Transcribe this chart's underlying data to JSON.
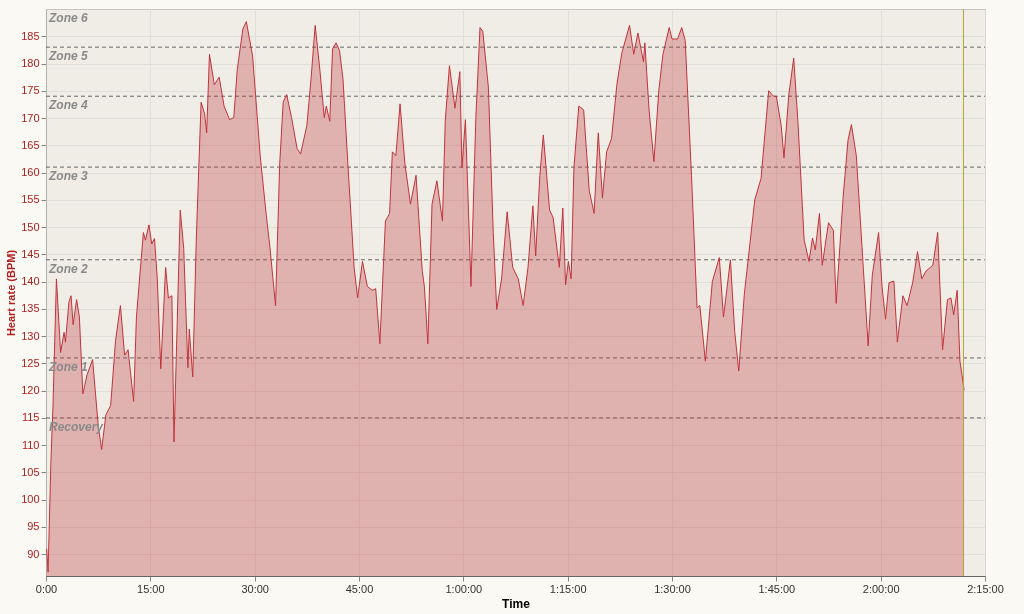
{
  "chart_data": {
    "type": "area",
    "xlabel": "Time",
    "ylabel": "Heart rate (BPM)",
    "xlim": [
      0,
      135
    ],
    "ylim": [
      86,
      190
    ],
    "xticks": [
      {
        "value": 0,
        "label": "0:00"
      },
      {
        "value": 15,
        "label": "15:00"
      },
      {
        "value": 30,
        "label": "30:00"
      },
      {
        "value": 45,
        "label": "45:00"
      },
      {
        "value": 60,
        "label": "1:00:00"
      },
      {
        "value": 75,
        "label": "1:15:00"
      },
      {
        "value": 90,
        "label": "1:30:00"
      },
      {
        "value": 105,
        "label": "1:45:00"
      },
      {
        "value": 120,
        "label": "2:00:00"
      },
      {
        "value": 135,
        "label": "2:15:00"
      }
    ],
    "yticks": [
      90,
      95,
      100,
      105,
      110,
      115,
      120,
      125,
      130,
      135,
      140,
      145,
      150,
      155,
      160,
      165,
      170,
      175,
      180,
      185
    ],
    "grid": true,
    "x": [
      0.1,
      0.3,
      0.7,
      1.0,
      1.5,
      2.1,
      2.6,
      2.8,
      3.3,
      3.6,
      3.9,
      4.4,
      4.8,
      5.3,
      5.9,
      6.7,
      7.5,
      8.0,
      8.6,
      9.3,
      10.0,
      10.7,
      11.3,
      11.8,
      12.6,
      13.0,
      14.0,
      14.3,
      14.8,
      15.2,
      15.6,
      16.0,
      16.5,
      17.2,
      17.6,
      18.1,
      18.4,
      18.6,
      19.3,
      19.8,
      20.4,
      20.6,
      21.1,
      21.6,
      22.3,
      22.8,
      23.1,
      23.5,
      24.2,
      24.9,
      25.6,
      26.4,
      27.0,
      27.5,
      28.3,
      28.8,
      29.7,
      30.8,
      31.7,
      32.2,
      33.0,
      33.6,
      34.1,
      34.6,
      35.3,
      36.1,
      36.6,
      37.5,
      38.1,
      38.7,
      39.4,
      40.0,
      40.3,
      40.8,
      41.2,
      41.7,
      42.2,
      42.7,
      43.4,
      44.3,
      44.8,
      45.5,
      46.2,
      46.9,
      47.4,
      48.0,
      48.8,
      49.4,
      49.8,
      50.3,
      50.9,
      51.6,
      52.4,
      53.2,
      54.1,
      54.4,
      54.9,
      55.5,
      56.2,
      57.0,
      57.4,
      58.0,
      58.8,
      59.5,
      59.8,
      60.3,
      61.1,
      61.8,
      62.4,
      62.8,
      63.6,
      64.3,
      64.8,
      65.5,
      66.3,
      67.1,
      67.9,
      68.6,
      69.3,
      70.0,
      70.4,
      71.0,
      71.5,
      72.4,
      72.9,
      73.8,
      74.3,
      74.7,
      75.1,
      75.5,
      75.9,
      76.6,
      77.3,
      78.1,
      78.8,
      79.4,
      80.0,
      80.6,
      81.3,
      82.1,
      82.8,
      83.9,
      84.5,
      85.1,
      85.9,
      86.1,
      86.7,
      87.4,
      88.1,
      88.7,
      89.6,
      90.0,
      90.8,
      91.4,
      91.9,
      92.8,
      93.6,
      94.0,
      94.8,
      95.8,
      96.8,
      97.4,
      97.9,
      98.4,
      99.0,
      99.6,
      100.4,
      101.2,
      101.9,
      102.8,
      103.9,
      104.6,
      105.0,
      105.7,
      106.1,
      106.8,
      107.5,
      108.1,
      109.0,
      109.7,
      110.2,
      110.6,
      111.2,
      111.6,
      112.5,
      113.2,
      113.6,
      114.6,
      115.3,
      115.8,
      116.5,
      117.5,
      118.2,
      118.8,
      119.7,
      120.2,
      120.7,
      121.2,
      121.9,
      122.4,
      123.2,
      123.8,
      124.6,
      125.3,
      125.9,
      126.5,
      127.5,
      128.2,
      128.9,
      129.6,
      130.1,
      130.5,
      131.0,
      131.4,
      132.0
    ],
    "series": [
      {
        "color": "#c0343c",
        "values": [
          91,
          86.7,
          106.7,
          117,
          140.5,
          127,
          130.7,
          128.9,
          136.3,
          137.4,
          132.1,
          136.7,
          133.5,
          119.4,
          122.9,
          125.7,
          113.7,
          109.2,
          115.5,
          117.3,
          129.2,
          135.6,
          126.5,
          127.5,
          118,
          133.5,
          149,
          147.6,
          150.4,
          146.9,
          147.9,
          140.5,
          124,
          142.6,
          137,
          137.4,
          110.6,
          120,
          153.1,
          146.1,
          124.2,
          131.3,
          122.5,
          147.5,
          172.9,
          170.8,
          167.3,
          181.7,
          176.1,
          177.5,
          172.2,
          169.7,
          170.1,
          178.9,
          186.3,
          187.7,
          181.4,
          163,
          151.8,
          146.2,
          135.6,
          161.6,
          172.9,
          174.3,
          170.1,
          164.4,
          163.4,
          168.6,
          177.1,
          187,
          178.5,
          170.1,
          172.2,
          169.4,
          182.7,
          183.8,
          182.4,
          177.1,
          161.6,
          142.6,
          137,
          143.7,
          139.1,
          138.4,
          138.7,
          128.6,
          151.1,
          152.5,
          163.8,
          163.1,
          172.6,
          161.6,
          154.2,
          159.5,
          141.9,
          139.1,
          128.6,
          154.2,
          158.5,
          151.1,
          169.4,
          179.6,
          171.8,
          178.5,
          160.9,
          169.7,
          139.1,
          170.1,
          186.6,
          185.9,
          175.7,
          149,
          134.9,
          140.5,
          152.8,
          142.6,
          140.5,
          135.6,
          142.6,
          153.9,
          144.7,
          159.5,
          166.9,
          153.1,
          151.8,
          142.6,
          153.5,
          139.4,
          143.7,
          140.5,
          160.9,
          172.2,
          171.5,
          156.7,
          152.5,
          167.3,
          155.3,
          163.8,
          166.2,
          176.4,
          182,
          187,
          181.7,
          185.6,
          180.3,
          183.8,
          171.5,
          162,
          175,
          181.7,
          186.6,
          184.5,
          184.5,
          186.6,
          184.2,
          159.5,
          135.2,
          135.6,
          125.4,
          140,
          144.4,
          133.5,
          138.7,
          144,
          131,
          123.6,
          137.7,
          146.9,
          155,
          158.9,
          175,
          174,
          174,
          168.6,
          162.7,
          174.3,
          181,
          169.4,
          147.6,
          143.7,
          148,
          145.8,
          152.5,
          143,
          150.8,
          149.4,
          136,
          155.4,
          165.9,
          168.8,
          163.1,
          142.6,
          128.2,
          141.2,
          149,
          139.1,
          133.1,
          139.8,
          140.1,
          128.9,
          137.4,
          135.6,
          139.8,
          145.5,
          140.5,
          141.9,
          143,
          149,
          127.5,
          136.7,
          137,
          133.9,
          138.4,
          125.4,
          120.1
        ]
      }
    ],
    "bands": [
      {
        "axis": "y",
        "from": 86,
        "to": 115,
        "label": "Recovery",
        "color": "#e6e2db"
      },
      {
        "axis": "y",
        "from": 115,
        "to": 126,
        "label": "Zone 1",
        "color": "#e6e2db"
      },
      {
        "axis": "y",
        "from": 126,
        "to": 144,
        "label": "Zone 2",
        "color": "#e6e2db"
      },
      {
        "axis": "y",
        "from": 144,
        "to": 161,
        "label": "Zone 3",
        "color": "#e6e2db"
      },
      {
        "axis": "y",
        "from": 161,
        "to": 174,
        "label": "Zone 4",
        "color": "#e6e2db"
      },
      {
        "axis": "y",
        "from": 174,
        "to": 183,
        "label": "Zone 5",
        "color": "#e6e2db"
      },
      {
        "axis": "y",
        "from": 183,
        "to": 190,
        "label": "Zone 6",
        "color": "#e6e2db"
      }
    ],
    "ref_lines": [
      {
        "axis": "x",
        "value": 131.9,
        "color": "#b8a040"
      }
    ]
  }
}
